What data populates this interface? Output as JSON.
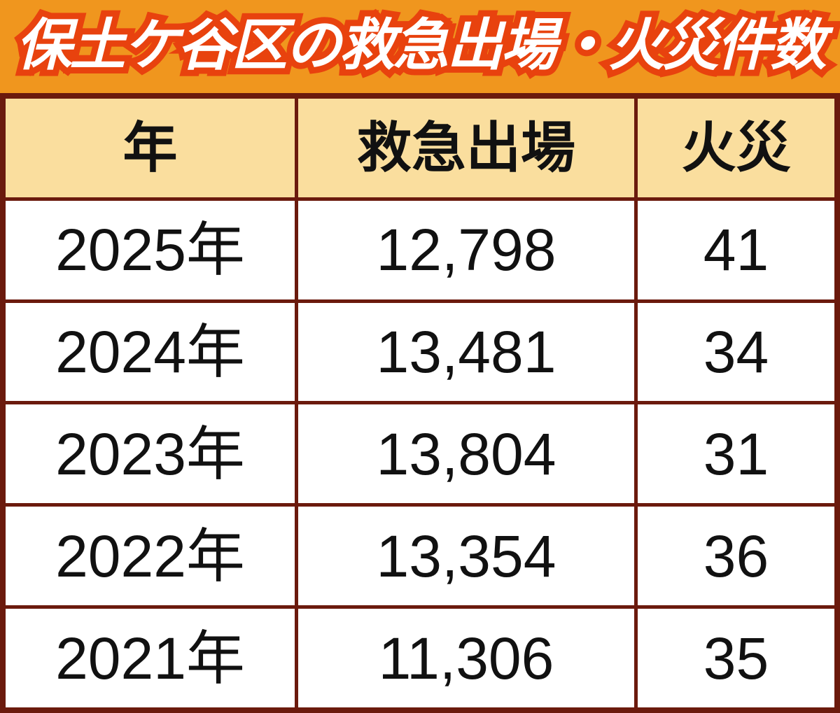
{
  "banner": {
    "title": "保土ケ谷区の救急出場・火災件数",
    "bg_color": "#F0961E",
    "text_color": "#FFFFFF",
    "outline_color": "#E8420E"
  },
  "table": {
    "border_color": "#6B1A0D",
    "header_bg": "#FADE9E",
    "columns": [
      "年",
      "救急出場",
      "火災"
    ],
    "rows": [
      [
        "2025年",
        "12,798",
        "41"
      ],
      [
        "2024年",
        "13,481",
        "34"
      ],
      [
        "2023年",
        "13,804",
        "31"
      ],
      [
        "2022年",
        "13,354",
        "36"
      ],
      [
        "2021年",
        "11,306",
        "35"
      ]
    ]
  },
  "chart_data": {
    "type": "table",
    "title": "保土ケ谷区の救急出場・火災件数",
    "columns": [
      "年",
      "救急出場",
      "火災"
    ],
    "rows": [
      {
        "year": "2025年",
        "ambulance_dispatches": 12798,
        "fires": 41
      },
      {
        "year": "2024年",
        "ambulance_dispatches": 13481,
        "fires": 34
      },
      {
        "year": "2023年",
        "ambulance_dispatches": 13804,
        "fires": 31
      },
      {
        "year": "2022年",
        "ambulance_dispatches": 13354,
        "fires": 36
      },
      {
        "year": "2021年",
        "ambulance_dispatches": 11306,
        "fires": 35
      }
    ]
  }
}
